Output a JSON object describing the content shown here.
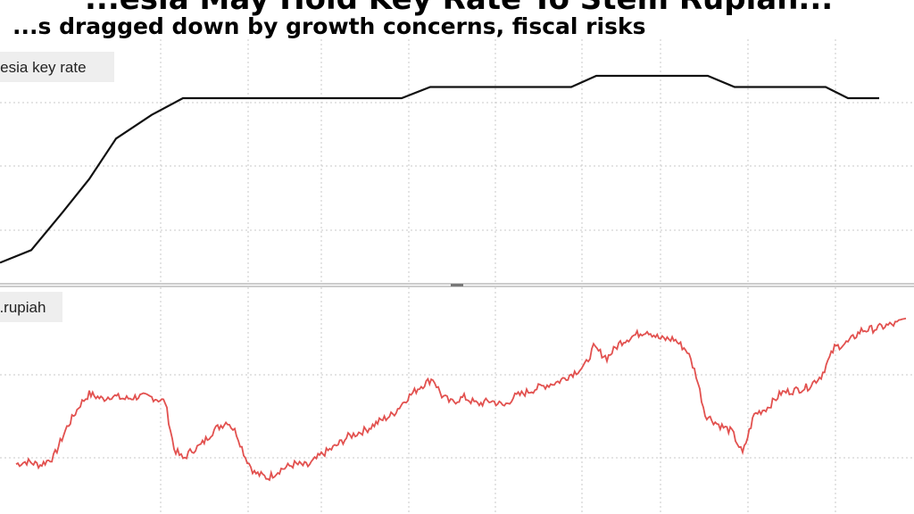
{
  "title": "...esia May Hold Key Rate To Stem Rupiah...",
  "subtitle": "...s dragged down by growth concerns, fiscal risks",
  "colors": {
    "key_rate": "#111111",
    "rupiah": "#e2514f",
    "legend_bg": "#eeeeee"
  },
  "chart_data": [
    {
      "type": "line",
      "title": "",
      "legend": "...esia key rate",
      "series": [
        {
          "name": "...esia key rate",
          "x": [
            0,
            35,
            70,
            100,
            130,
            170,
            205,
            250,
            300,
            350,
            400,
            450,
            482,
            520,
            560,
            600,
            640,
            668,
            700,
            750,
            793,
            823,
            870,
            925,
            950,
            985
          ],
          "values": [
            0.0,
            0.09,
            0.36,
            0.6,
            0.89,
            1.06,
            1.18,
            1.18,
            1.18,
            1.18,
            1.18,
            1.18,
            1.26,
            1.26,
            1.26,
            1.26,
            1.26,
            1.34,
            1.34,
            1.34,
            1.34,
            1.26,
            1.26,
            1.26,
            1.18,
            1.18
          ]
        }
      ],
      "ylim": [
        -0.1,
        1.5
      ],
      "grid": true
    },
    {
      "type": "line",
      "title": "",
      "legend": "...rupiah",
      "series": [
        {
          "name": "...rupiah",
          "x": [
            18,
            30,
            45,
            60,
            75,
            90,
            100,
            115,
            125,
            140,
            155,
            170,
            185,
            195,
            205,
            215,
            225,
            240,
            255,
            265,
            275,
            285,
            300,
            315,
            330,
            345,
            360,
            375,
            390,
            410,
            425,
            440,
            455,
            470,
            485,
            495,
            505,
            520,
            535,
            550,
            565,
            575,
            590,
            605,
            625,
            640,
            655,
            665,
            680,
            695,
            710,
            725,
            740,
            755,
            770,
            780,
            790,
            805,
            820,
            832,
            845,
            860,
            875,
            890,
            905,
            920,
            935,
            950,
            965,
            980,
            995,
            1005,
            1015
          ],
          "values": [
            0.52,
            0.55,
            0.51,
            0.6,
            0.95,
            1.22,
            1.34,
            1.28,
            1.32,
            1.28,
            1.31,
            1.3,
            1.25,
            0.7,
            0.58,
            0.68,
            0.74,
            0.92,
            1.02,
            0.88,
            0.6,
            0.42,
            0.36,
            0.46,
            0.52,
            0.5,
            0.63,
            0.72,
            0.84,
            0.92,
            1.02,
            1.1,
            1.28,
            1.42,
            1.52,
            1.32,
            1.24,
            1.3,
            1.22,
            1.26,
            1.2,
            1.3,
            1.36,
            1.42,
            1.48,
            1.57,
            1.66,
            1.88,
            1.76,
            1.94,
            2.02,
            2.08,
            1.98,
            1.98,
            1.84,
            1.56,
            1.1,
            0.98,
            0.9,
            0.64,
            1.1,
            1.18,
            1.35,
            1.38,
            1.42,
            1.55,
            1.88,
            1.94,
            2.08,
            2.1,
            2.14,
            2.16,
            2.22
          ]
        }
      ],
      "ylim": [
        0,
        2.5
      ],
      "grid": true
    }
  ]
}
